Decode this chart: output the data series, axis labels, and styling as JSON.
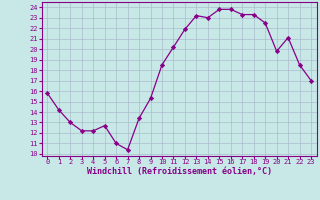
{
  "x": [
    0,
    1,
    2,
    3,
    4,
    5,
    6,
    7,
    8,
    9,
    10,
    11,
    12,
    13,
    14,
    15,
    16,
    17,
    18,
    19,
    20,
    21,
    22,
    23
  ],
  "y": [
    15.8,
    14.2,
    13.0,
    12.2,
    12.2,
    12.7,
    11.0,
    10.4,
    13.4,
    15.3,
    18.5,
    20.2,
    21.9,
    23.2,
    23.0,
    23.8,
    23.8,
    23.3,
    23.3,
    22.5,
    19.8,
    21.1,
    18.5,
    17.0
  ],
  "line_color": "#880088",
  "marker": "D",
  "marker_size": 2.2,
  "bg_color": "#c8e8e8",
  "grid_color": "#aabccc",
  "xlabel": "Windchill (Refroidissement éolien,°C)",
  "ylabel_ticks": [
    10,
    11,
    12,
    13,
    14,
    15,
    16,
    17,
    18,
    19,
    20,
    21,
    22,
    23,
    24
  ],
  "ylim": [
    9.8,
    24.5
  ],
  "xlim": [
    -0.5,
    23.5
  ],
  "xticks": [
    0,
    1,
    2,
    3,
    4,
    5,
    6,
    7,
    8,
    9,
    10,
    11,
    12,
    13,
    14,
    15,
    16,
    17,
    18,
    19,
    20,
    21,
    22,
    23
  ],
  "tick_fontsize": 5.0,
  "xlabel_fontsize": 6.0,
  "title_color": "#880088",
  "axis_color": "#880088"
}
